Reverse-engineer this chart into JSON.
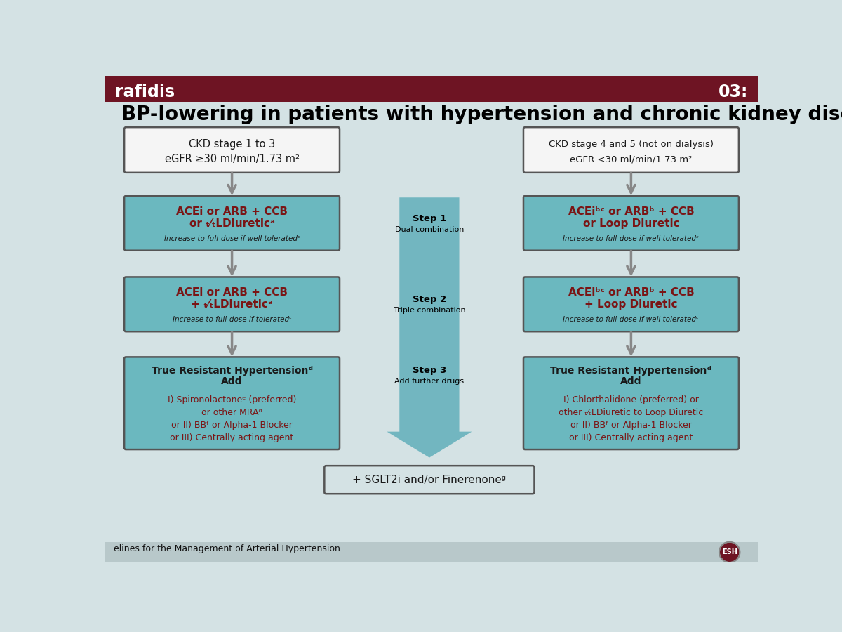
{
  "title": "BP-lowering in patients with hypertension and chronic kidney disease",
  "bg_color": "#d4e2e4",
  "header_color": "#6e1423",
  "header_text_color": "#ffffff",
  "header_title": "rafidis",
  "header_time": "03:",
  "footer_text": "elines for the Management of Arterial Hypertension",
  "title_fontsize": 20,
  "box_teal": "#6bb8bf",
  "box_white": "#f5f5f5",
  "box_border_dark": "#555555",
  "arrow_color": "#888888",
  "big_arrow_color": "#5aacb8",
  "text_dark": "#1a1a1a",
  "text_red": "#7a1515",
  "left_col": {
    "header_line1": "CKD stage 1 to 3",
    "header_line2": "eGFR ≥30 ml/min/1.73 m²",
    "step1_line1": "ACEi or ARB + CCB",
    "step1_line2": "or ₜ⁄ₜLDiureticᵃ",
    "step1_sub": "Increase to full-dose if well toleratedᶜ",
    "step2_line1": "ACEi or ARB + CCB",
    "step2_line2": "+ ₜ⁄ₜLDiureticᵃ",
    "step2_sub": "Increase to full-dose if toleratedᶜ",
    "step3_line1": "True Resistant Hypertensionᵈ",
    "step3_line2": "Add",
    "step3_body": "I) Spironolactoneᵉ (preferred)\nor other MRAᵈ\nor II) BBᶠ or Alpha-1 Blocker\nor III) Centrally acting agent"
  },
  "right_col": {
    "header_line1": "CKD stage 4 and 5 (not on dialysis)",
    "header_line2": "eGFR <30 ml/min/1.73 m²",
    "step1_line1": "ACEiᵇᶜ or ARBᵇ + CCB",
    "step1_line2": "or Loop Diuretic",
    "step1_sub": "Increase to full-dose if well toleratedᶜ",
    "step2_line1": "ACEiᵇᶜ or ARBᵇ + CCB",
    "step2_line2": "+ Loop Diuretic",
    "step2_sub": "Increase to full-dose if well toleratedᶜ",
    "step3_line1": "True Resistant Hypertensionᵈ",
    "step3_line2": "Add",
    "step3_body": "I) Chlorthalidone (preferred) or\nother ₜ⁄ₜLDiuretic to Loop Diuretic\nor II) BBᶠ or Alpha-1 Blocker\nor III) Centrally acting agent"
  },
  "center_steps": [
    {
      "label": "Step 1",
      "sublabel": "Dual combination"
    },
    {
      "label": "Step 2",
      "sublabel": "Triple combination"
    },
    {
      "label": "Step 3",
      "sublabel": "Add further drugs"
    }
  ],
  "bottom_box": "+ SGLT2i and/or Finerenoneᵍ"
}
